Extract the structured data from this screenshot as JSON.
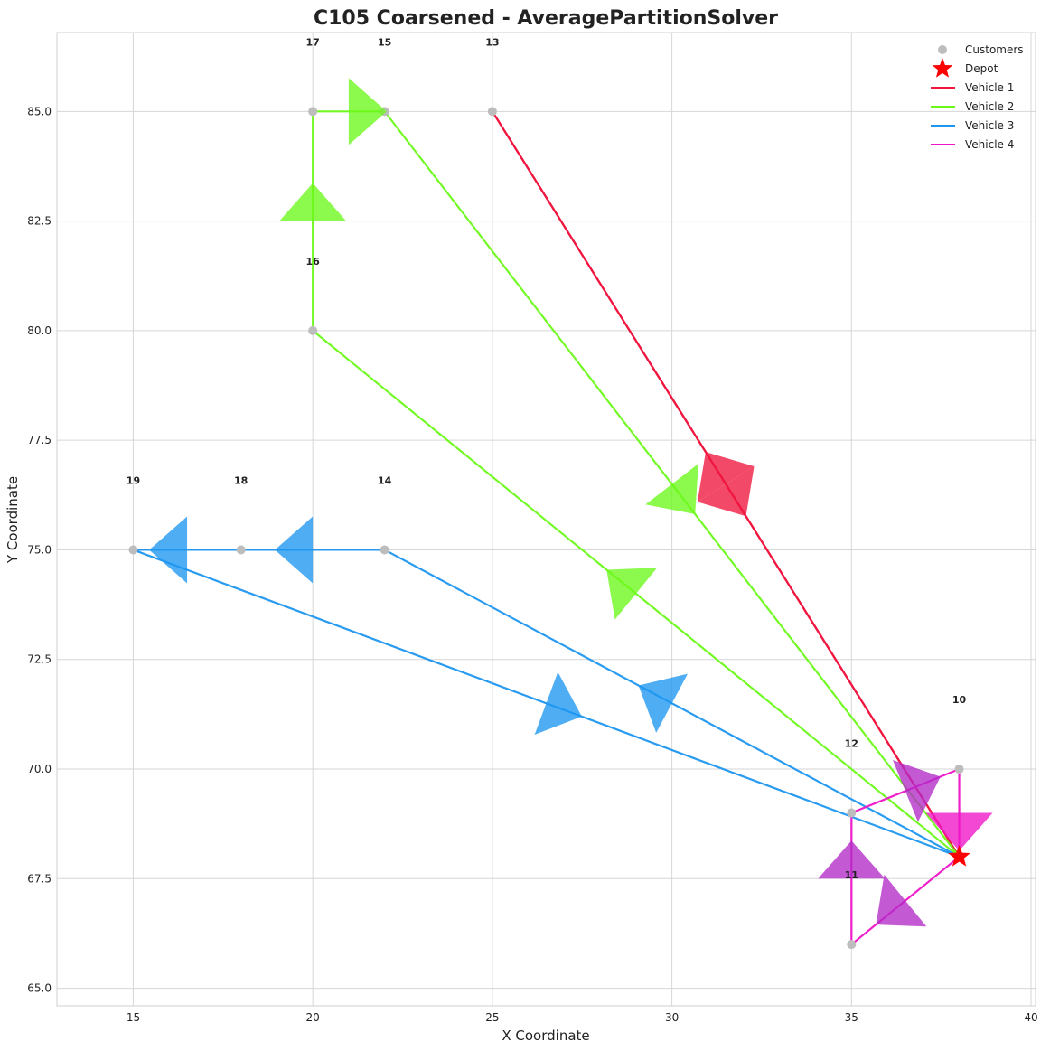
{
  "chart_data": {
    "type": "scatter",
    "title": "C105 Coarsened - AveragePartitionSolver",
    "xlabel": "X Coordinate",
    "ylabel": "Y Coordinate",
    "xlim": [
      12.875,
      40.125
    ],
    "ylim": [
      64.6,
      86.8
    ],
    "xticks": [
      15,
      20,
      25,
      30,
      35,
      40
    ],
    "yticks": [
      65.0,
      67.5,
      70.0,
      72.5,
      75.0,
      77.5,
      80.0,
      82.5,
      85.0
    ],
    "grid": true,
    "legend_position": "top-right",
    "depot": {
      "x": 38,
      "y": 68
    },
    "customers": [
      {
        "id": "10",
        "x": 38,
        "y": 70
      },
      {
        "id": "11",
        "x": 35,
        "y": 66
      },
      {
        "id": "12",
        "x": 35,
        "y": 69
      },
      {
        "id": "13",
        "x": 25,
        "y": 85
      },
      {
        "id": "14",
        "x": 22,
        "y": 75
      },
      {
        "id": "15",
        "x": 22,
        "y": 85
      },
      {
        "id": "16",
        "x": 20,
        "y": 80
      },
      {
        "id": "17",
        "x": 20,
        "y": 85
      },
      {
        "id": "18",
        "x": 18,
        "y": 75
      },
      {
        "id": "19",
        "x": 15,
        "y": 75
      }
    ],
    "legend": [
      "Customers",
      "Depot",
      "Vehicle 1",
      "Vehicle 2",
      "Vehicle 3",
      "Vehicle 4"
    ],
    "routes": [
      {
        "name": "Vehicle 1",
        "color": "#f0163f",
        "stops": [
          "depot",
          "13",
          "depot"
        ]
      },
      {
        "name": "Vehicle 2",
        "color": "#6cf91a",
        "stops": [
          "depot",
          "16",
          "17",
          "15",
          "depot"
        ]
      },
      {
        "name": "Vehicle 3",
        "color": "#1e96f0",
        "stops": [
          "depot",
          "14",
          "18",
          "19",
          "depot"
        ]
      },
      {
        "name": "Vehicle 4",
        "color": "#f014c8",
        "stops": [
          "depot",
          "11",
          "12",
          "10",
          "depot"
        ]
      }
    ],
    "colors": {
      "customer": "#bdbdbd",
      "depot": "#ff0000",
      "grid": "#d6d6d6",
      "vehicle4_overlap": "#b42ac8"
    }
  }
}
